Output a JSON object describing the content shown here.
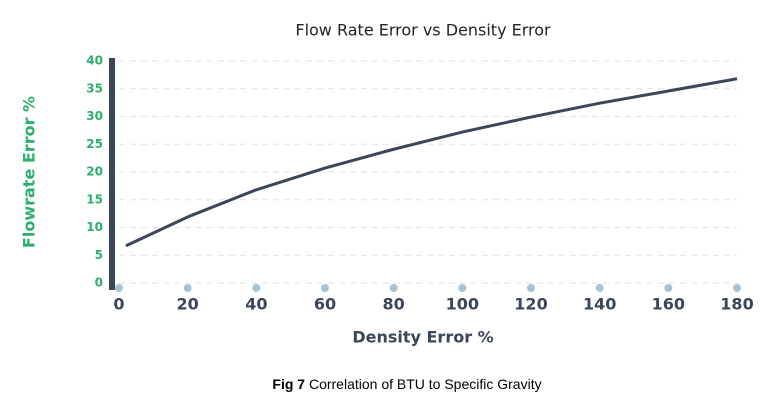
{
  "chart_data": {
    "type": "line",
    "title": "Flow Rate Error vs Density Error",
    "x_label": "Density Error %",
    "y_label": "Flowrate Error %",
    "caption": {
      "label": "Fig 7",
      "text": "Correlation of BTU to Specific Gravity"
    },
    "x": [
      2,
      20,
      40,
      60,
      80,
      100,
      120,
      140,
      160,
      180
    ],
    "values": [
      6.7,
      11.9,
      16.8,
      20.7,
      24.1,
      27.2,
      29.9,
      32.4,
      34.6,
      36.8
    ],
    "color": "#3b4658",
    "xlim": [
      0,
      180
    ],
    "xticks": [
      0,
      20,
      40,
      60,
      80,
      100,
      120,
      140,
      160,
      180
    ],
    "ylim": [
      0,
      40
    ],
    "yticks": [
      0,
      5,
      10,
      15,
      20,
      25,
      30,
      35,
      40
    ],
    "grid": true
  }
}
